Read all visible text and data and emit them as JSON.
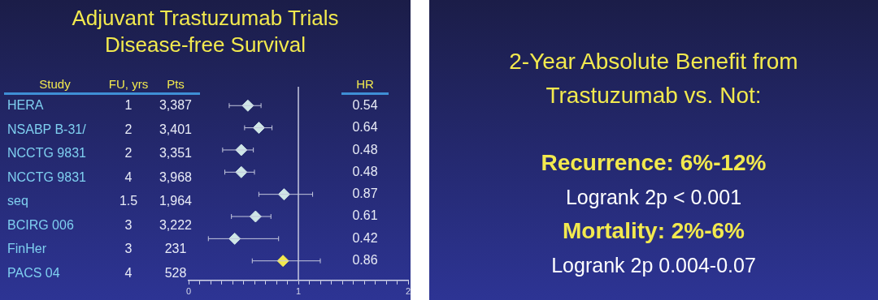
{
  "chart_data": [
    {
      "type": "scatter",
      "title": "Adjuvant Trastuzumab Trials Disease-free Survival",
      "orientation": "horizontal",
      "categories": [
        null,
        null,
        null,
        null,
        null,
        null,
        null,
        null
      ],
      "values": [
        0.54,
        0.64,
        0.48,
        0.48,
        0.87,
        0.61,
        0.42,
        0.86
      ],
      "errors": [
        [
          0.37,
          0.66
        ],
        [
          0.51,
          0.76
        ],
        [
          0.31,
          0.59
        ],
        [
          0.33,
          0.6
        ],
        [
          0.64,
          1.13
        ],
        [
          0.39,
          0.75
        ],
        [
          0.18,
          0.82
        ],
        [
          0.58,
          1.2
        ]
      ],
      "colors": [
        "#cfe6e6",
        "#cfe6e6",
        "#cfe6e6",
        "#cfe6e6",
        "#cfe6e6",
        "#cfe6e6",
        "#cfe6e6",
        "#f2e94e"
      ],
      "marker": "diamond",
      "grid": false,
      "tick_labels": "x",
      "xlim": [
        0,
        2
      ],
      "xticks": [
        0,
        {
          "value": 0.1,
          "label": null
        },
        {
          "value": 0.2,
          "label": null
        },
        {
          "value": 0.3,
          "label": null
        },
        {
          "value": 0.4,
          "label": null
        },
        {
          "value": 0.5,
          "label": null
        },
        {
          "value": 0.6,
          "label": null
        },
        {
          "value": 0.7,
          "label": null
        },
        {
          "value": 0.8,
          "label": null
        },
        {
          "value": 0.9,
          "label": null
        },
        1,
        {
          "value": 1.1,
          "label": null
        },
        {
          "value": 1.2,
          "label": null
        },
        {
          "value": 1.3,
          "label": null
        },
        {
          "value": 1.4,
          "label": null
        },
        {
          "value": 1.5,
          "label": null
        },
        {
          "value": 1.6,
          "label": null
        },
        {
          "value": 1.7,
          "label": null
        },
        {
          "value": 1.8,
          "label": null
        },
        {
          "value": 1.9,
          "label": null
        },
        2
      ],
      "ref_lines": [
        {
          "axis": "x",
          "value": 1,
          "color": "#c8cbe0"
        }
      ]
    },
    {
      "type": "other",
      "title": "Study",
      "annotations": [
        "HERA",
        "NSABP B-31/",
        "NCCTG 9831",
        "NCCTG 9831",
        "seq",
        "BCIRG 006",
        "FinHer",
        "PACS 04"
      ]
    },
    {
      "type": "other",
      "title": "FU, yrs",
      "annotations": [
        "1",
        "2",
        "2",
        "4",
        "1.5",
        "3",
        "3",
        "4"
      ]
    },
    {
      "type": "other",
      "title": "Pts",
      "annotations": [
        "3,387",
        "3,401",
        "3,351",
        "3,968",
        "1,964",
        "3,222",
        "231",
        "528"
      ]
    },
    {
      "type": "other",
      "title": "HR",
      "annotations": [
        "0.54",
        "0.64",
        "0.48",
        "0.48",
        "0.87",
        "0.61",
        "0.42",
        "0.86"
      ]
    },
    {
      "type": "other",
      "title": "2-Year Absolute Benefit from Trastuzumab vs. Not:",
      "annotations": [
        "Recurrence: 6%-12%",
        "Logrank 2p < 0.001",
        "Mortality: 2%-6%",
        "Logrank 2p 0.004-0.07"
      ]
    }
  ]
}
